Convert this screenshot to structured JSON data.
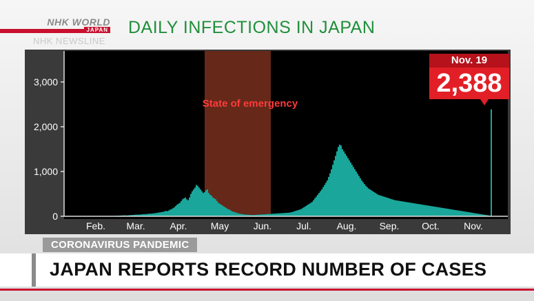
{
  "branding": {
    "logo_text": "NHK WORLD",
    "logo_sub": "JAPAN",
    "newsline": "NHK NEWSLINE",
    "accent_color": "#c8102e"
  },
  "title": "DAILY INFECTIONS IN JAPAN",
  "callout": {
    "date": "Nov. 19",
    "value": "2,388"
  },
  "chart_data": {
    "type": "bar",
    "title": "DAILY INFECTIONS IN JAPAN",
    "xlabel": "",
    "ylabel": "",
    "ylim": [
      0,
      3600
    ],
    "yticks": [
      0,
      1000,
      2000,
      3000
    ],
    "ytick_labels": [
      "0",
      "1,000",
      "2,000",
      "3,000"
    ],
    "month_ticks": [
      {
        "label": "Feb.",
        "day": 19
      },
      {
        "label": "Mar.",
        "day": 48
      },
      {
        "label": "Apr.",
        "day": 79
      },
      {
        "label": "May",
        "day": 109
      },
      {
        "label": "Jun.",
        "day": 140
      },
      {
        "label": "Jul.",
        "day": 170
      },
      {
        "label": "Aug.",
        "day": 201
      },
      {
        "label": "Sep.",
        "day": 232
      },
      {
        "label": "Oct.",
        "day": 262
      },
      {
        "label": "Nov.",
        "day": 293
      }
    ],
    "bar_color": "#1aa79a",
    "highlight": {
      "label": "State of emergency",
      "start_day": 98,
      "end_day": 146,
      "color": "#6b2a1a"
    },
    "annotation": {
      "label": "Nov. 19",
      "value": 2388
    },
    "x_start": "Jan. 16",
    "series": [
      {
        "values": [
          1,
          0,
          0,
          1,
          0,
          0,
          0,
          0,
          1,
          1,
          2,
          1,
          3,
          4,
          2,
          1,
          1,
          1,
          0,
          0,
          0,
          0,
          0,
          1,
          0,
          1,
          2,
          3,
          4,
          5,
          5,
          6,
          8,
          10,
          12,
          10,
          14,
          16,
          18,
          20,
          22,
          18,
          20,
          24,
          26,
          28,
          30,
          34,
          36,
          38,
          35,
          40,
          42,
          45,
          50,
          48,
          52,
          55,
          60,
          58,
          62,
          66,
          70,
          75,
          80,
          85,
          90,
          95,
          100,
          110,
          120,
          115,
          130,
          150,
          160,
          180,
          200,
          230,
          260,
          280,
          300,
          340,
          380,
          400,
          420,
          380,
          360,
          420,
          500,
          560,
          600,
          640,
          700,
          680,
          640,
          600,
          560,
          520,
          540,
          580,
          600,
          520,
          480,
          460,
          420,
          400,
          380,
          340,
          300,
          280,
          260,
          240,
          220,
          200,
          180,
          160,
          150,
          130,
          110,
          100,
          90,
          80,
          70,
          60,
          55,
          50,
          45,
          40,
          38,
          36,
          34,
          32,
          30,
          28,
          30,
          32,
          34,
          36,
          38,
          40,
          42,
          44,
          46,
          48,
          50,
          52,
          54,
          56,
          58,
          60,
          62,
          64,
          66,
          68,
          70,
          72,
          74,
          76,
          78,
          80,
          85,
          90,
          100,
          110,
          120,
          130,
          140,
          150,
          160,
          180,
          200,
          220,
          240,
          260,
          280,
          300,
          320,
          360,
          400,
          440,
          480,
          520,
          560,
          600,
          650,
          700,
          750,
          800,
          880,
          960,
          1050,
          1150,
          1250,
          1350,
          1450,
          1550,
          1600,
          1580,
          1500,
          1450,
          1400,
          1350,
          1300,
          1250,
          1200,
          1150,
          1100,
          1050,
          1000,
          950,
          900,
          850,
          800,
          760,
          720,
          680,
          650,
          620,
          600,
          580,
          560,
          540,
          520,
          500,
          480,
          470,
          460,
          450,
          440,
          430,
          420,
          410,
          400,
          390,
          380,
          370,
          360,
          355,
          350,
          345,
          340,
          335,
          330,
          325,
          320,
          315,
          310,
          305,
          300,
          295,
          290,
          285,
          280,
          275,
          270,
          265,
          260,
          255,
          250,
          245,
          240,
          235,
          230,
          225,
          220,
          215,
          210,
          205,
          200,
          195,
          190,
          185,
          180,
          175,
          170,
          165,
          160,
          155,
          150,
          145,
          140,
          135,
          130,
          125,
          120,
          115,
          110,
          105,
          100,
          95,
          90,
          85,
          80,
          75,
          70,
          65,
          60,
          55,
          50,
          45,
          40,
          35,
          30,
          25,
          20,
          15,
          2388
        ]
      }
    ]
  },
  "ticker": {
    "tag": "CORONAVIRUS PANDEMIC",
    "headline": "JAPAN REPORTS RECORD NUMBER OF CASES"
  }
}
